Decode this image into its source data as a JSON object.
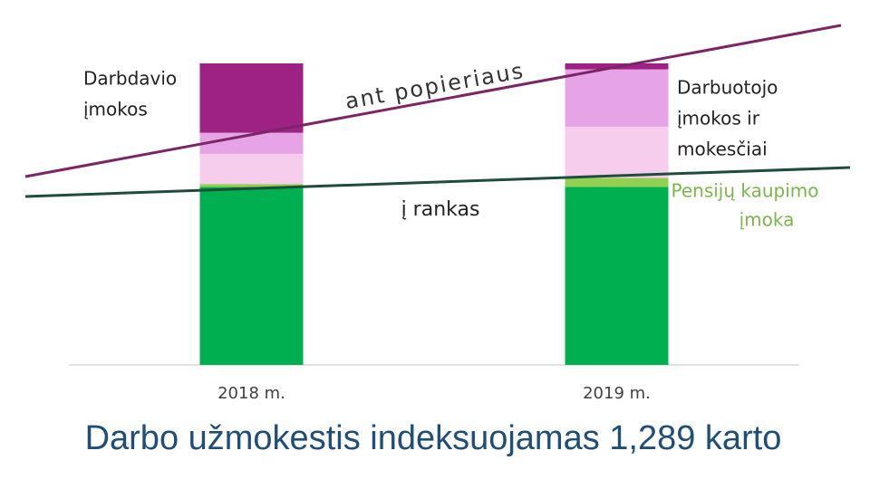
{
  "chart_data": {
    "type": "stacked_bar",
    "title": "Darbo užmokestis indeksuojamas 1,289 karto",
    "categories": [
      "2018 m.",
      "2019 m."
    ],
    "series": [
      {
        "color": "#00b050",
        "values": [
          59,
          59
        ]
      },
      {
        "color": "#92d050",
        "values": [
          1,
          3
        ]
      },
      {
        "color": "#f6cdec",
        "values": [
          10,
          17
        ]
      },
      {
        "color": "#e6a4e6",
        "values": [
          7,
          19
        ]
      },
      {
        "color": "#9e2283",
        "values": [
          23,
          2
        ]
      }
    ],
    "ylim": [
      0,
      100
    ],
    "annotations": {
      "employer": [
        "Darbdavio",
        "įmokos"
      ],
      "employee": [
        "Darbuotojo",
        "įmokos ir",
        "mokesčiai"
      ],
      "pension": [
        "Pensijų kaupimo",
        "įmoka"
      ],
      "net": "į rankas",
      "gross": "ant popieriaus"
    }
  }
}
